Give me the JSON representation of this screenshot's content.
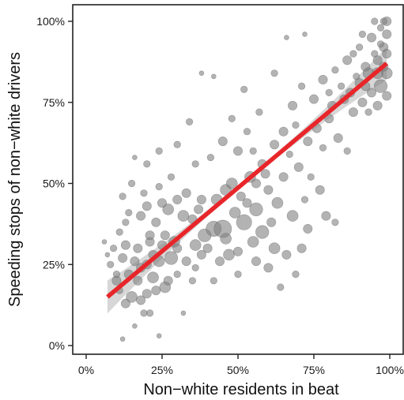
{
  "chart_data": {
    "type": "scatter",
    "title": "",
    "xlabel": "Non−white residents in beat",
    "ylabel": "Speeding stops of non−white drivers",
    "xlim": [
      -0.04,
      1.02
    ],
    "ylim": [
      -0.02,
      1.05
    ],
    "x_ticks": [
      0,
      0.25,
      0.5,
      0.75,
      1.0
    ],
    "x_tick_labels": [
      "0%",
      "25%",
      "50%",
      "75%",
      "100%"
    ],
    "y_ticks": [
      0,
      0.25,
      0.5,
      0.75,
      1.0
    ],
    "y_tick_labels": [
      "0%",
      "25%",
      "50%",
      "75%",
      "100%"
    ],
    "grid": false,
    "legend": "none",
    "colors": {
      "points": "#808080",
      "fit": "#e8262a",
      "band": "#bdbdbd",
      "axis": "#222222"
    },
    "fit_line": {
      "x": [
        0.07,
        0.99
      ],
      "y": [
        0.15,
        0.87
      ]
    },
    "points": [
      [
        0.12,
        0.02,
        1
      ],
      [
        0.16,
        0.06,
        1
      ],
      [
        0.24,
        0.03,
        1
      ],
      [
        0.19,
        0.1,
        2
      ],
      [
        0.21,
        0.1,
        2
      ],
      [
        0.32,
        0.1,
        1
      ],
      [
        0.13,
        0.13,
        3
      ],
      [
        0.15,
        0.15,
        4
      ],
      [
        0.18,
        0.14,
        3
      ],
      [
        0.2,
        0.16,
        3
      ],
      [
        0.23,
        0.17,
        3
      ],
      [
        0.26,
        0.18,
        4
      ],
      [
        0.11,
        0.17,
        2
      ],
      [
        0.1,
        0.2,
        3
      ],
      [
        0.14,
        0.22,
        3
      ],
      [
        0.17,
        0.2,
        3
      ],
      [
        0.22,
        0.21,
        4
      ],
      [
        0.27,
        0.2,
        3
      ],
      [
        0.3,
        0.22,
        2
      ],
      [
        0.08,
        0.25,
        2
      ],
      [
        0.12,
        0.27,
        3
      ],
      [
        0.16,
        0.26,
        3
      ],
      [
        0.2,
        0.25,
        3
      ],
      [
        0.24,
        0.26,
        4
      ],
      [
        0.28,
        0.27,
        5
      ],
      [
        0.33,
        0.26,
        3
      ],
      [
        0.36,
        0.24,
        2
      ],
      [
        0.09,
        0.3,
        2
      ],
      [
        0.13,
        0.31,
        3
      ],
      [
        0.17,
        0.3,
        3
      ],
      [
        0.21,
        0.32,
        3
      ],
      [
        0.25,
        0.31,
        3
      ],
      [
        0.29,
        0.32,
        4
      ],
      [
        0.36,
        0.31,
        4
      ],
      [
        0.39,
        0.34,
        5
      ],
      [
        0.42,
        0.36,
        6
      ],
      [
        0.46,
        0.33,
        4
      ],
      [
        0.13,
        0.38,
        2
      ],
      [
        0.18,
        0.4,
        3
      ],
      [
        0.23,
        0.38,
        3
      ],
      [
        0.27,
        0.42,
        4
      ],
      [
        0.32,
        0.4,
        4
      ],
      [
        0.37,
        0.42,
        3
      ],
      [
        0.43,
        0.45,
        4
      ],
      [
        0.49,
        0.41,
        4
      ],
      [
        0.53,
        0.44,
        3
      ],
      [
        0.25,
        0.44,
        3
      ],
      [
        0.33,
        0.47,
        3
      ],
      [
        0.38,
        0.45,
        3
      ],
      [
        0.46,
        0.48,
        4
      ],
      [
        0.51,
        0.46,
        3
      ],
      [
        0.56,
        0.42,
        5
      ],
      [
        0.6,
        0.48,
        3
      ],
      [
        0.21,
        0.34,
        3
      ],
      [
        0.45,
        0.36,
        7
      ],
      [
        0.52,
        0.38,
        6
      ],
      [
        0.55,
        0.32,
        4
      ],
      [
        0.58,
        0.35,
        5
      ],
      [
        0.62,
        0.3,
        4
      ],
      [
        0.66,
        0.28,
        3
      ],
      [
        0.5,
        0.29,
        3
      ],
      [
        0.47,
        0.28,
        4
      ],
      [
        0.44,
        0.26,
        3
      ],
      [
        0.35,
        0.2,
        2
      ],
      [
        0.42,
        0.2,
        2
      ],
      [
        0.5,
        0.22,
        2
      ],
      [
        0.56,
        0.26,
        3
      ],
      [
        0.6,
        0.24,
        3
      ],
      [
        0.64,
        0.18,
        2
      ],
      [
        0.69,
        0.22,
        2
      ],
      [
        0.71,
        0.3,
        3
      ],
      [
        0.73,
        0.36,
        3
      ],
      [
        0.68,
        0.4,
        4
      ],
      [
        0.63,
        0.44,
        4
      ],
      [
        0.65,
        0.52,
        3
      ],
      [
        0.58,
        0.56,
        3
      ],
      [
        0.55,
        0.6,
        2
      ],
      [
        0.62,
        0.62,
        3
      ],
      [
        0.67,
        0.59,
        2
      ],
      [
        0.7,
        0.55,
        3
      ],
      [
        0.74,
        0.52,
        2
      ],
      [
        0.77,
        0.48,
        3
      ],
      [
        0.72,
        0.45,
        2
      ],
      [
        0.79,
        0.4,
        3
      ],
      [
        0.82,
        0.38,
        2
      ],
      [
        0.65,
        0.66,
        3
      ],
      [
        0.69,
        0.68,
        2
      ],
      [
        0.73,
        0.63,
        3
      ],
      [
        0.76,
        0.67,
        3
      ],
      [
        0.8,
        0.7,
        3
      ],
      [
        0.78,
        0.61,
        2
      ],
      [
        0.83,
        0.64,
        3
      ],
      [
        0.86,
        0.6,
        2
      ],
      [
        0.81,
        0.74,
        3
      ],
      [
        0.85,
        0.76,
        3
      ],
      [
        0.88,
        0.72,
        3
      ],
      [
        0.91,
        0.75,
        3
      ],
      [
        0.94,
        0.78,
        3
      ],
      [
        0.97,
        0.8,
        5
      ],
      [
        0.99,
        0.84,
        4
      ],
      [
        0.9,
        0.81,
        3
      ],
      [
        0.93,
        0.84,
        4
      ],
      [
        0.96,
        0.88,
        3
      ],
      [
        0.98,
        0.92,
        3
      ],
      [
        0.99,
        0.96,
        3
      ],
      [
        0.97,
        0.98,
        2
      ],
      [
        0.99,
        1.0,
        3
      ],
      [
        0.98,
        0.86,
        3
      ],
      [
        0.95,
        0.9,
        2
      ],
      [
        0.92,
        0.86,
        3
      ],
      [
        0.89,
        0.83,
        2
      ],
      [
        0.87,
        0.78,
        3
      ],
      [
        0.84,
        0.8,
        2
      ],
      [
        0.82,
        0.85,
        2
      ],
      [
        0.86,
        0.88,
        3
      ],
      [
        0.9,
        0.92,
        2
      ],
      [
        0.94,
        0.95,
        3
      ],
      [
        0.97,
        0.93,
        2
      ],
      [
        0.99,
        0.9,
        3
      ],
      [
        0.96,
        0.74,
        3
      ],
      [
        0.93,
        0.72,
        2
      ],
      [
        0.99,
        0.77,
        3
      ],
      [
        0.62,
        0.84,
        2
      ],
      [
        0.66,
        0.95,
        1
      ],
      [
        0.72,
        0.96,
        1
      ],
      [
        0.38,
        0.84,
        1
      ],
      [
        0.42,
        0.83,
        1
      ],
      [
        0.52,
        0.79,
        2
      ],
      [
        0.57,
        0.72,
        2
      ],
      [
        0.48,
        0.7,
        2
      ],
      [
        0.34,
        0.69,
        2
      ],
      [
        0.3,
        0.62,
        2
      ],
      [
        0.24,
        0.6,
        2
      ],
      [
        0.2,
        0.56,
        2
      ],
      [
        0.16,
        0.58,
        1
      ],
      [
        0.15,
        0.5,
        2
      ],
      [
        0.12,
        0.46,
        2
      ],
      [
        0.19,
        0.47,
        2
      ],
      [
        0.28,
        0.52,
        2
      ],
      [
        0.36,
        0.56,
        2
      ],
      [
        0.41,
        0.58,
        2
      ],
      [
        0.45,
        0.63,
        3
      ],
      [
        0.5,
        0.6,
        3
      ],
      [
        0.53,
        0.66,
        2
      ],
      [
        0.56,
        0.5,
        3
      ],
      [
        0.59,
        0.53,
        3
      ],
      [
        0.61,
        0.38,
        3
      ],
      [
        0.38,
        0.28,
        3
      ],
      [
        0.4,
        0.3,
        3
      ],
      [
        0.3,
        0.3,
        3
      ],
      [
        0.26,
        0.34,
        3
      ],
      [
        0.22,
        0.28,
        3
      ],
      [
        0.18,
        0.24,
        3
      ],
      [
        0.1,
        0.22,
        2
      ],
      [
        0.07,
        0.28,
        1
      ],
      [
        0.06,
        0.32,
        1
      ],
      [
        0.11,
        0.35,
        2
      ],
      [
        0.14,
        0.41,
        2
      ],
      [
        0.2,
        0.43,
        3
      ],
      [
        0.24,
        0.49,
        2
      ],
      [
        0.3,
        0.45,
        3
      ],
      [
        0.35,
        0.39,
        3
      ],
      [
        0.48,
        0.5,
        4
      ],
      [
        0.54,
        0.52,
        4
      ],
      [
        0.68,
        0.74,
        3
      ],
      [
        0.71,
        0.8,
        2
      ],
      [
        0.75,
        0.76,
        3
      ],
      [
        0.78,
        0.82,
        3
      ],
      [
        0.8,
        0.78,
        2
      ],
      [
        0.88,
        0.9,
        2
      ],
      [
        0.91,
        0.96,
        2
      ],
      [
        0.95,
        1.0,
        2
      ],
      [
        0.98,
        1.0,
        2
      ],
      [
        0.96,
        0.84,
        4
      ],
      [
        0.92,
        0.8,
        3
      ]
    ]
  }
}
